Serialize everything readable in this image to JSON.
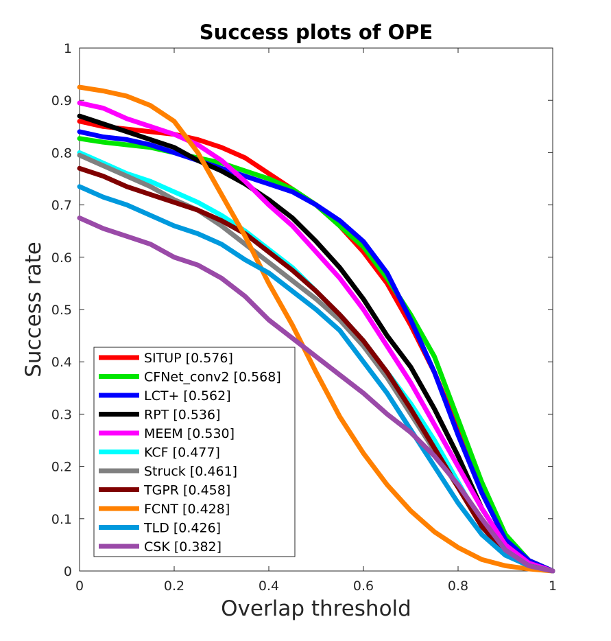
{
  "chart_data": {
    "type": "line",
    "title": "Success plots of OPE",
    "xlabel": "Overlap threshold",
    "ylabel": "Success rate",
    "xlim": [
      0,
      1
    ],
    "ylim": [
      0,
      1
    ],
    "xticks": [
      "0",
      "0.2",
      "0.4",
      "0.6",
      "0.8",
      "1"
    ],
    "yticks": [
      "0",
      "0.1",
      "0.2",
      "0.3",
      "0.4",
      "0.5",
      "0.6",
      "0.7",
      "0.8",
      "0.9",
      "1"
    ],
    "legend_position": "bottom-left",
    "x": [
      0,
      0.05,
      0.1,
      0.15,
      0.2,
      0.25,
      0.3,
      0.35,
      0.4,
      0.45,
      0.5,
      0.55,
      0.6,
      0.65,
      0.7,
      0.75,
      0.8,
      0.85,
      0.9,
      0.95,
      1.0
    ],
    "series": [
      {
        "name": "SITUP [0.576]",
        "color": "#ff0000",
        "values": [
          0.86,
          0.85,
          0.845,
          0.84,
          0.835,
          0.825,
          0.81,
          0.79,
          0.76,
          0.73,
          0.7,
          0.66,
          0.61,
          0.55,
          0.47,
          0.38,
          0.27,
          0.15,
          0.06,
          0.02,
          0.0
        ]
      },
      {
        "name": "CFNet_conv2 [0.568]",
        "color": "#00e600",
        "values": [
          0.827,
          0.82,
          0.815,
          0.81,
          0.8,
          0.79,
          0.78,
          0.765,
          0.75,
          0.73,
          0.7,
          0.66,
          0.62,
          0.56,
          0.49,
          0.41,
          0.29,
          0.17,
          0.07,
          0.02,
          0.0
        ]
      },
      {
        "name": "LCT+ [0.562]",
        "color": "#0000ff",
        "values": [
          0.84,
          0.83,
          0.825,
          0.815,
          0.8,
          0.785,
          0.77,
          0.755,
          0.74,
          0.725,
          0.7,
          0.67,
          0.63,
          0.57,
          0.48,
          0.38,
          0.26,
          0.15,
          0.06,
          0.02,
          0.0
        ]
      },
      {
        "name": "RPT [0.536]",
        "color": "#000000",
        "values": [
          0.87,
          0.855,
          0.84,
          0.825,
          0.81,
          0.785,
          0.765,
          0.74,
          0.71,
          0.675,
          0.63,
          0.58,
          0.52,
          0.45,
          0.39,
          0.31,
          0.22,
          0.12,
          0.05,
          0.015,
          0.0
        ]
      },
      {
        "name": "MEEM [0.530]",
        "color": "#ff00ff",
        "values": [
          0.895,
          0.885,
          0.865,
          0.85,
          0.835,
          0.815,
          0.785,
          0.745,
          0.7,
          0.66,
          0.61,
          0.56,
          0.5,
          0.43,
          0.36,
          0.28,
          0.2,
          0.12,
          0.05,
          0.015,
          0.0
        ]
      },
      {
        "name": "KCF [0.477]",
        "color": "#00ffff",
        "values": [
          0.8,
          0.78,
          0.76,
          0.745,
          0.725,
          0.705,
          0.68,
          0.65,
          0.615,
          0.58,
          0.535,
          0.49,
          0.44,
          0.38,
          0.32,
          0.25,
          0.17,
          0.09,
          0.04,
          0.01,
          0.0
        ]
      },
      {
        "name": "Struck [0.461]",
        "color": "#808080",
        "values": [
          0.795,
          0.775,
          0.755,
          0.735,
          0.71,
          0.69,
          0.66,
          0.625,
          0.59,
          0.555,
          0.52,
          0.48,
          0.43,
          0.37,
          0.3,
          0.23,
          0.16,
          0.09,
          0.04,
          0.01,
          0.0
        ]
      },
      {
        "name": "TGPR [0.458]",
        "color": "#800000",
        "values": [
          0.77,
          0.755,
          0.735,
          0.72,
          0.705,
          0.69,
          0.67,
          0.645,
          0.61,
          0.575,
          0.535,
          0.49,
          0.44,
          0.38,
          0.31,
          0.235,
          0.16,
          0.085,
          0.035,
          0.01,
          0.0
        ]
      },
      {
        "name": "FCNT [0.428]",
        "color": "#ff8000",
        "values": [
          0.925,
          0.918,
          0.908,
          0.89,
          0.86,
          0.8,
          0.72,
          0.64,
          0.55,
          0.47,
          0.38,
          0.295,
          0.225,
          0.165,
          0.115,
          0.075,
          0.045,
          0.022,
          0.01,
          0.004,
          0.0
        ]
      },
      {
        "name": "TLD [0.426]",
        "color": "#0099dd",
        "values": [
          0.735,
          0.715,
          0.7,
          0.68,
          0.66,
          0.645,
          0.625,
          0.595,
          0.57,
          0.535,
          0.5,
          0.46,
          0.4,
          0.34,
          0.27,
          0.2,
          0.13,
          0.07,
          0.03,
          0.01,
          0.0
        ]
      },
      {
        "name": "CSK [0.382]",
        "color": "#9a4aa8",
        "values": [
          0.675,
          0.655,
          0.64,
          0.625,
          0.6,
          0.585,
          0.56,
          0.525,
          0.48,
          0.445,
          0.41,
          0.375,
          0.34,
          0.3,
          0.265,
          0.22,
          0.165,
          0.1,
          0.04,
          0.01,
          0.0
        ]
      }
    ]
  }
}
